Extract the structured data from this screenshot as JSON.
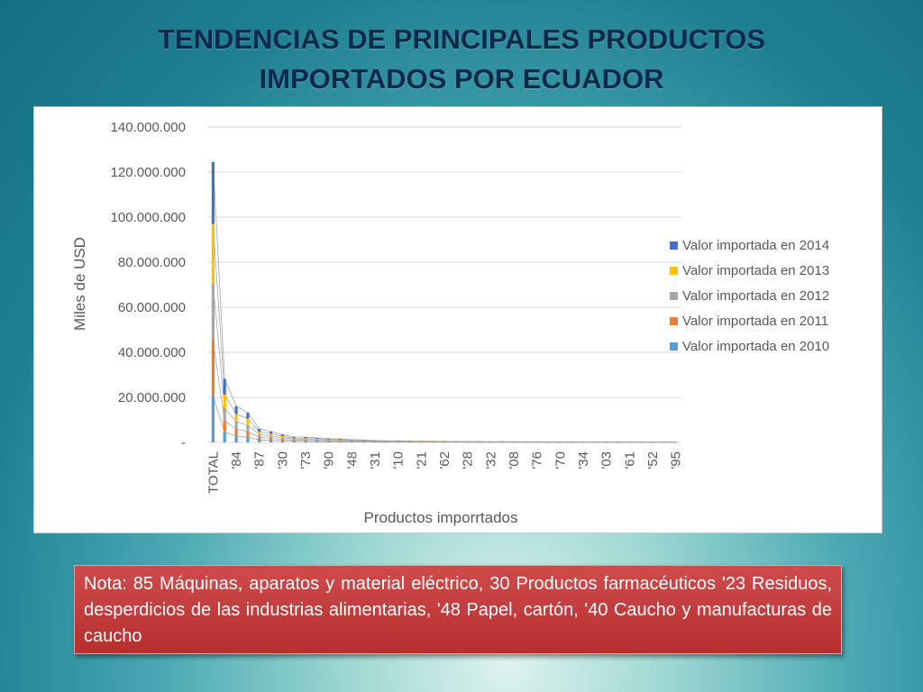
{
  "slide": {
    "title_line1": "TENDENCIAS DE PRINCIPALES PRODUCTOS",
    "title_line2": "IMPORTADOS POR ECUADOR",
    "note": "Nota: 85 Máquinas, aparatos y material eléctrico, 30 Productos farmacéuticos '23 Residuos, desperdicios de las industrias alimentarias, '48 Papel, cartón, '40 Caucho y manufacturas de caucho"
  },
  "chart_data": {
    "type": "bar",
    "stacked": true,
    "xlabel": "Productos imporrtados",
    "ylabel": "Miles de USD",
    "ylim": [
      0,
      140000000
    ],
    "y_ticks": [
      "-",
      "20.000.000",
      "40.000.000",
      "60.000.000",
      "80.000.000",
      "100.000.000",
      "120.000.000",
      "140.000.000"
    ],
    "y_tick_values": [
      0,
      20000000,
      40000000,
      60000000,
      80000000,
      100000000,
      120000000,
      140000000
    ],
    "grid": true,
    "legend_position": "right",
    "category_count": 41,
    "x_tick_labels": [
      "TOTAL",
      "'84",
      "'87",
      "'30",
      "'73",
      "'90",
      "'48",
      "'31",
      "'10",
      "'21",
      "'62",
      "'28",
      "'32",
      "'08",
      "'76",
      "'70",
      "'34",
      "'03",
      "'61",
      "'52",
      "'95"
    ],
    "series": [
      {
        "name": "Valor importada en 2010",
        "color": "#5b9bd5",
        "values": [
          20500000,
          4500000,
          2800000,
          2300000,
          1100000,
          900000,
          700000,
          450000,
          450000,
          380000,
          320000,
          300000,
          230000,
          210000,
          160000,
          140000,
          130000,
          120000,
          110000,
          100000,
          90000,
          85000,
          80000,
          75000,
          70000,
          65000,
          60000,
          55000,
          50000,
          48000,
          45000,
          42000,
          40000,
          38000,
          36000,
          34000,
          32000,
          30000,
          28000,
          26000,
          25000
        ]
      },
      {
        "name": "Valor importada en 2011",
        "color": "#ed7d31",
        "values": [
          24500000,
          5200000,
          3100000,
          2600000,
          1200000,
          950000,
          700000,
          480000,
          470000,
          400000,
          330000,
          310000,
          240000,
          210000,
          170000,
          150000,
          140000,
          120000,
          110000,
          100000,
          90000,
          85000,
          80000,
          75000,
          70000,
          65000,
          60000,
          55000,
          50000,
          48000,
          45000,
          42000,
          40000,
          38000,
          36000,
          34000,
          32000,
          30000,
          28000,
          26000,
          25000
        ]
      },
      {
        "name": "Valor importada en 2012",
        "color": "#a5a5a5",
        "values": [
          25000000,
          5500000,
          3300000,
          2800000,
          1250000,
          980000,
          700000,
          490000,
          480000,
          410000,
          340000,
          320000,
          250000,
          220000,
          175000,
          155000,
          145000,
          125000,
          115000,
          105000,
          95000,
          88000,
          82000,
          78000,
          72000,
          68000,
          62000,
          58000,
          52000,
          50000,
          46000,
          44000,
          41000,
          39000,
          37000,
          35000,
          33000,
          31000,
          29000,
          27000,
          26000
        ]
      },
      {
        "name": "Valor importada en 2013",
        "color": "#ffc000",
        "values": [
          27000000,
          6000000,
          3400000,
          2900000,
          1250000,
          1000000,
          700000,
          500000,
          490000,
          420000,
          350000,
          330000,
          260000,
          230000,
          180000,
          160000,
          150000,
          130000,
          120000,
          110000,
          100000,
          90000,
          85000,
          80000,
          75000,
          70000,
          65000,
          60000,
          55000,
          52000,
          48000,
          45000,
          42000,
          40000,
          38000,
          36000,
          34000,
          32000,
          30000,
          28000,
          27000
        ]
      },
      {
        "name": "Valor importada en 2014",
        "color": "#4472c4",
        "values": [
          27500000,
          7000000,
          3500000,
          2600000,
          1200000,
          1000000,
          700000,
          500000,
          500000,
          430000,
          360000,
          340000,
          260000,
          230000,
          180000,
          160000,
          150000,
          130000,
          120000,
          110000,
          100000,
          90000,
          85000,
          80000,
          75000,
          70000,
          65000,
          60000,
          55000,
          52000,
          48000,
          45000,
          42000,
          40000,
          38000,
          36000,
          34000,
          32000,
          30000,
          28000,
          27000
        ]
      }
    ]
  }
}
